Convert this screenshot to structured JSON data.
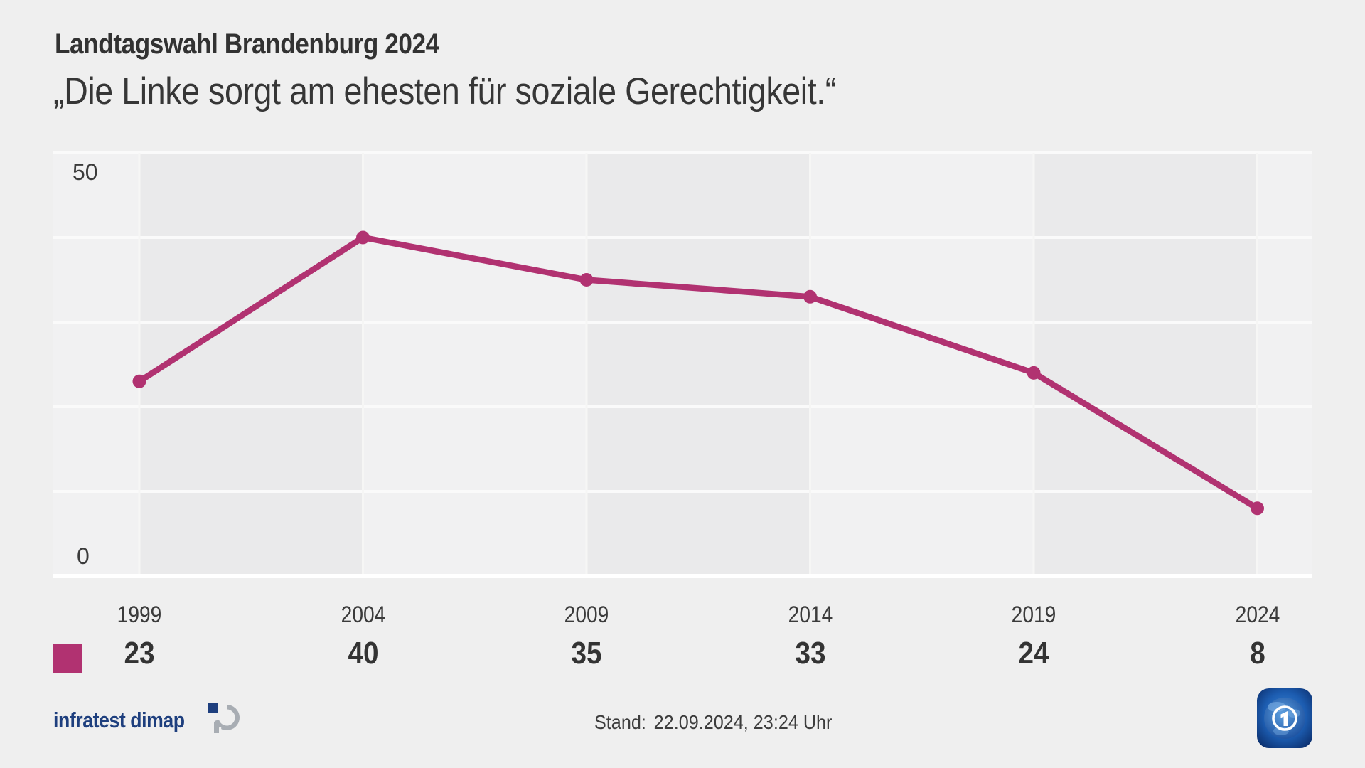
{
  "header": {
    "title": "Landtagswahl Brandenburg 2024",
    "subtitle": "„Die Linke sorgt am ehesten für soziale Gerechtigkeit.“"
  },
  "chart_data": {
    "type": "line",
    "title": "Landtagswahl Brandenburg 2024",
    "subtitle": "„Die Linke sorgt am ehesten für soziale Gerechtigkeit.“",
    "categories": [
      "1999",
      "2004",
      "2009",
      "2014",
      "2019",
      "2024"
    ],
    "series": [
      {
        "name": "Die Linke",
        "color": "#b13271",
        "values": [
          23,
          40,
          35,
          33,
          24,
          8
        ]
      }
    ],
    "ylim": [
      0,
      50
    ],
    "grid_step": 10,
    "y_axis_labels": [
      "50",
      "0"
    ],
    "grid": true,
    "marker": "circle",
    "legend_position": "bottom-left"
  },
  "footer": {
    "brand": "infratest dimap",
    "brand_icon": "infratest-dimap-icon",
    "stand_label": "Stand:",
    "stand_value": "22.09.2024, 23:24 Uhr",
    "channel_icon": "ard-tagesschau-icon"
  },
  "colors": {
    "accent": "#b13271",
    "background": "#efefef",
    "text": "#323232",
    "brand_blue": "#1e3f7e"
  }
}
